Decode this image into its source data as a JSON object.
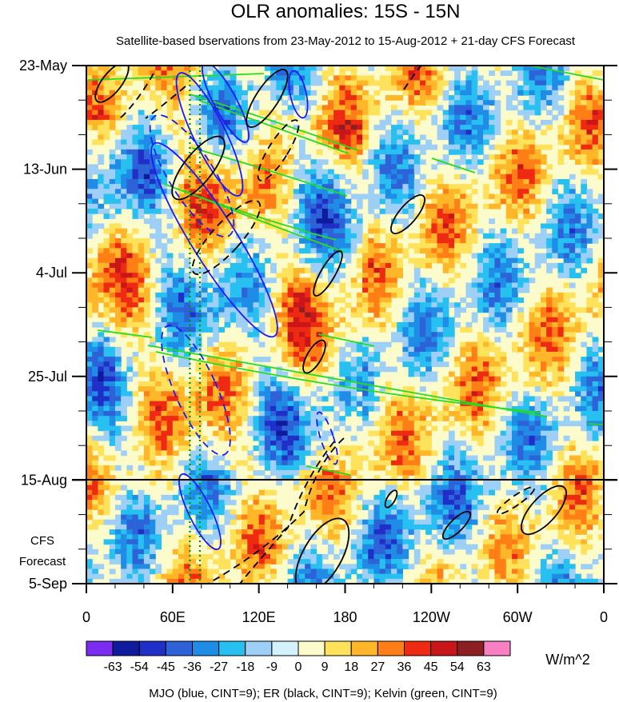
{
  "chart_data": {
    "type": "heatmap",
    "title": "OLR anomalies: 15S - 15N",
    "subtitle": "Satellite-based bservations from 23-May-2012 to 15-Aug-2012 + 21-day CFS Forecast",
    "x_axis": {
      "ticks": [
        {
          "lon": 0,
          "label": "0"
        },
        {
          "lon": 60,
          "label": "60E"
        },
        {
          "lon": 120,
          "label": "120E"
        },
        {
          "lon": 180,
          "label": "180"
        },
        {
          "lon": 240,
          "label": "120W"
        },
        {
          "lon": 300,
          "label": "60W"
        },
        {
          "lon": 360,
          "label": "0"
        }
      ],
      "range": [
        0,
        360
      ]
    },
    "y_axis": {
      "ticks": [
        {
          "day": 0,
          "label": "23-May"
        },
        {
          "day": 21,
          "label": "13-Jun"
        },
        {
          "day": 42,
          "label": "4-Jul"
        },
        {
          "day": 63,
          "label": "25-Jul"
        },
        {
          "day": 84,
          "label": "15-Aug"
        },
        {
          "day": 105,
          "label": "5-Sep"
        }
      ],
      "range_days": [
        0,
        105
      ],
      "start_date": "23-May-2012",
      "end_date": "5-Sep-2012",
      "forecast_start_date": "15-Aug-2012"
    },
    "forecast_label_lines": [
      "CFS",
      "Forecast"
    ],
    "colorbar": {
      "unit": "W/m^2",
      "levels": [
        -63,
        -54,
        -45,
        -36,
        -27,
        -18,
        -9,
        0,
        9,
        18,
        27,
        36,
        45,
        54,
        63
      ],
      "colors": [
        "#7b2cf0",
        "#101a9c",
        "#1f2fc8",
        "#2d62d8",
        "#1f8ce6",
        "#27c0f0",
        "#9ed0f7",
        "#d3f2fb",
        "#fbfbcc",
        "#ffe25c",
        "#ffb628",
        "#ff7f16",
        "#ee2a12",
        "#c8161b",
        "#8c1f22",
        "#f77fc2"
      ]
    },
    "contour_legend": "MJO (blue, CINT=9); ER (black, CINT=9); Kelvin (green, CINT=9)",
    "contour_colors": {
      "MJO": "#1a1aff",
      "ER": "#000000",
      "Kelvin": "#22dd22"
    },
    "reference_lines": [
      {
        "lon": 72,
        "color": "#0a8a0a",
        "style": "dotted"
      },
      {
        "lon": 79,
        "color": "#0a8a0a",
        "style": "dotted"
      }
    ],
    "grid": false
  }
}
